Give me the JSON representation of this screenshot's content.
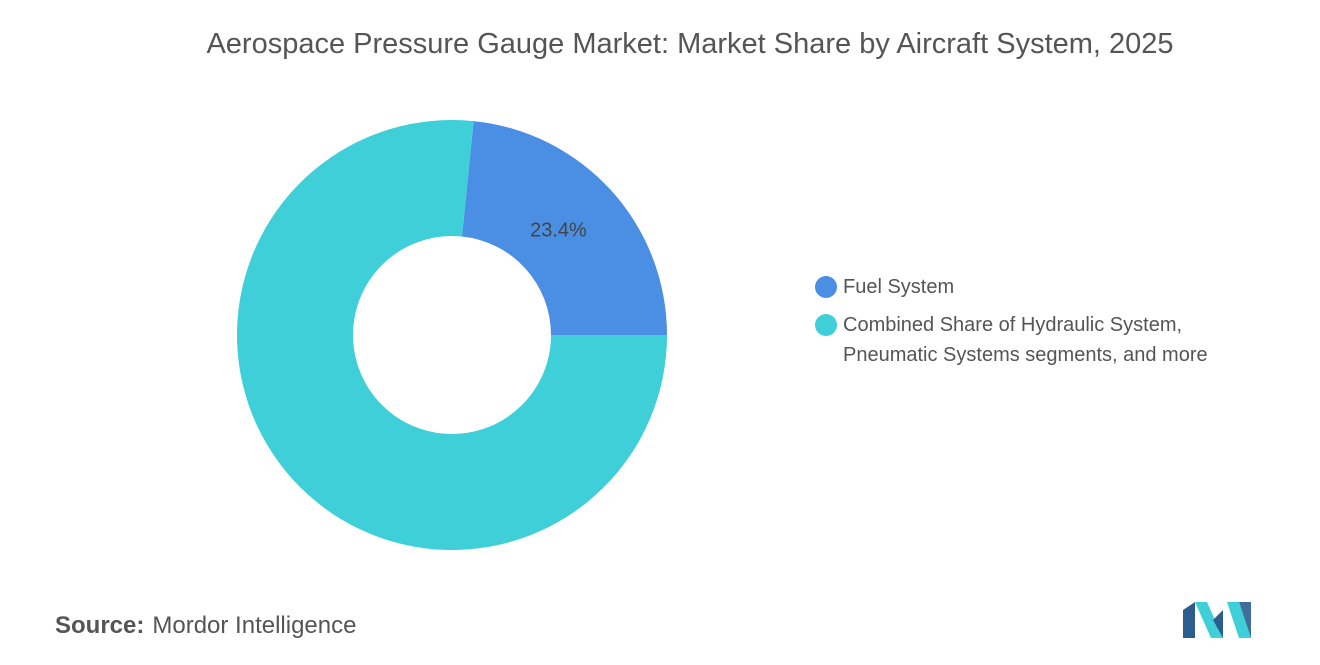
{
  "chart_data": {
    "type": "donut",
    "title": "Aerospace Pressure Gauge Market: Market Share by Aircraft System, 2025",
    "categories": [
      "Fuel System",
      "Combined Share of Hydraulic System, Pneumatic Systems segments, and more"
    ],
    "values": [
      23.4,
      76.6
    ],
    "value_labels": [
      "23.4%",
      null
    ],
    "colors": [
      "#4a8fe3",
      "#3ecfd9"
    ],
    "legend": "right"
  },
  "source": {
    "label": "Source:",
    "name": "Mordor Intelligence"
  }
}
